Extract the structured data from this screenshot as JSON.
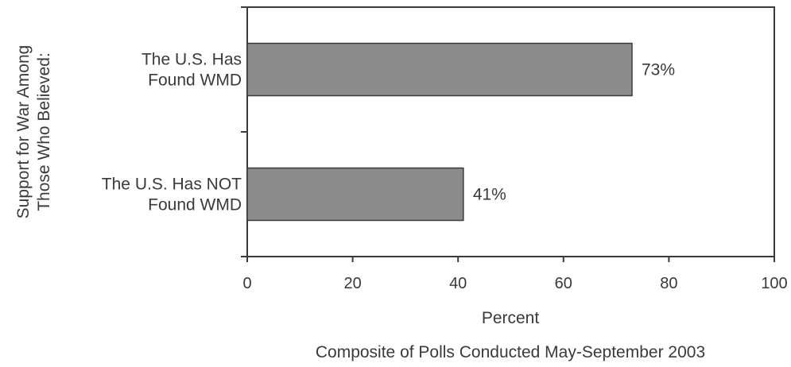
{
  "chart_data": {
    "type": "bar",
    "orientation": "horizontal",
    "categories": [
      [
        "The U.S. Has",
        "Found WMD"
      ],
      [
        "The U.S. Has NOT",
        "Found WMD"
      ]
    ],
    "values": [
      73,
      41
    ],
    "data_labels": [
      "73%",
      "41%"
    ],
    "xlabel": "Percent",
    "ylabel": [
      "Support for War Among",
      "Those Who Believed:"
    ],
    "note": "Composite of Polls Conducted May-September 2003",
    "xlim": [
      0,
      100
    ],
    "xticks": [
      0,
      20,
      40,
      60,
      80,
      100
    ],
    "grid": false,
    "colors": {
      "bar": "#8c8c8c",
      "bar_stroke": "#3a3a3a",
      "axis": "#3a3a3a"
    }
  }
}
